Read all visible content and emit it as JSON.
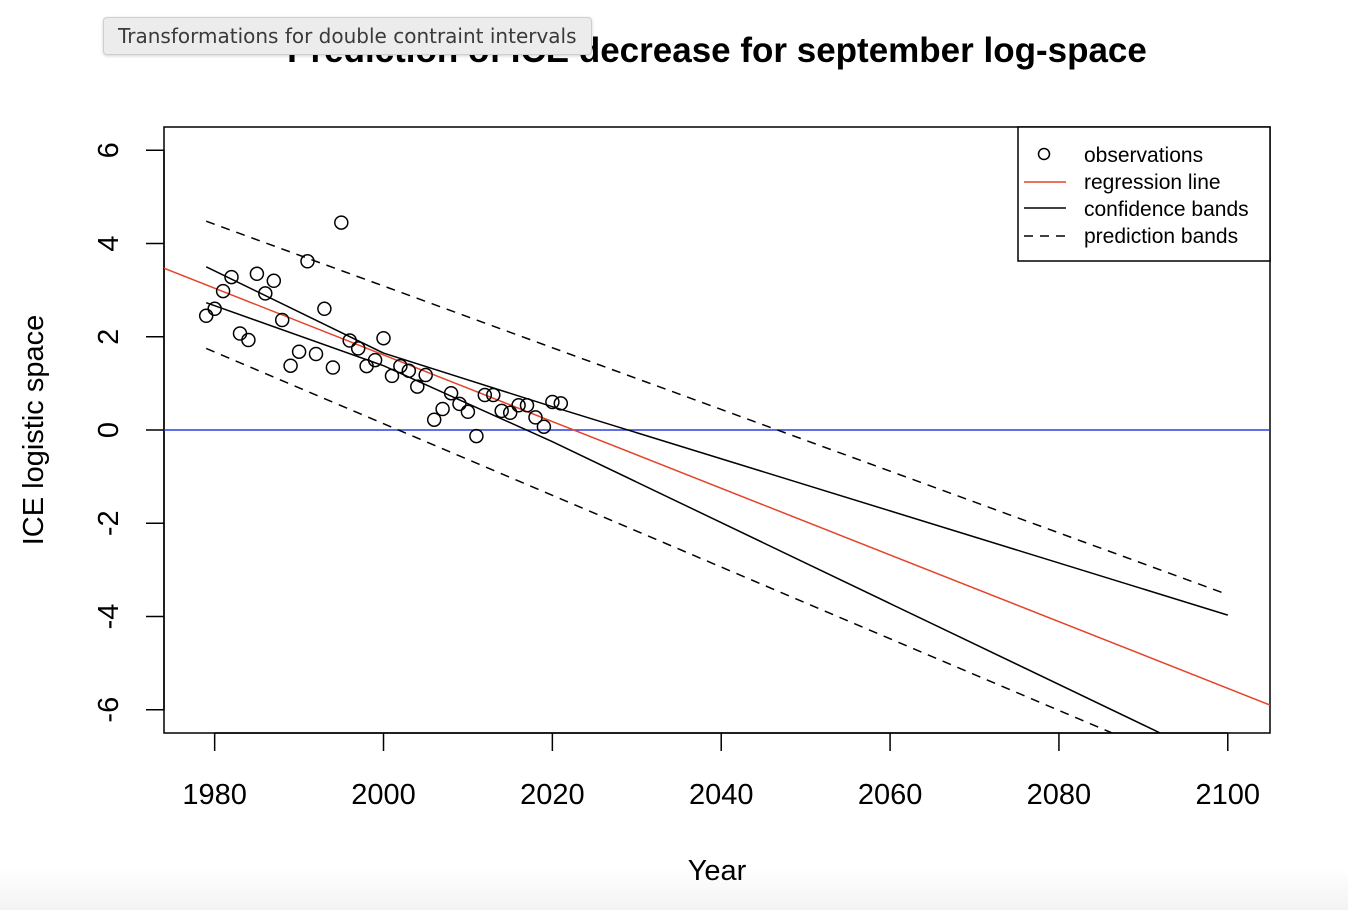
{
  "tooltip": {
    "text": "Transformations for double contraint intervals"
  },
  "colors": {
    "regression": "#e5432a",
    "zero_line": "#2b3fe0",
    "ink": "#000000"
  },
  "chart_data": {
    "type": "scatter",
    "title": "Prediction of ICE decrease for september log-space",
    "xlabel": "Year",
    "ylabel": "ICE logistic space",
    "xlim": [
      1974,
      2105
    ],
    "ylim": [
      -6.5,
      6.5
    ],
    "x_ticks": [
      1980,
      2000,
      2020,
      2040,
      2060,
      2080,
      2100
    ],
    "y_ticks": [
      -6,
      -4,
      -2,
      0,
      2,
      4,
      6
    ],
    "legend_position": "top-right",
    "legend": [
      {
        "label": "observations",
        "style": "circle"
      },
      {
        "label": "regression line",
        "style": "red-solid"
      },
      {
        "label": "confidence bands",
        "style": "black-solid"
      },
      {
        "label": "prediction bands",
        "style": "black-dashed"
      }
    ],
    "observations": {
      "x": [
        1979,
        1980,
        1981,
        1982,
        1983,
        1984,
        1985,
        1986,
        1987,
        1988,
        1989,
        1990,
        1991,
        1992,
        1993,
        1994,
        1995,
        1996,
        1997,
        1998,
        1999,
        2000,
        2001,
        2002,
        2003,
        2004,
        2005,
        2006,
        2007,
        2008,
        2009,
        2010,
        2011,
        2012,
        2013,
        2014,
        2015,
        2016,
        2017,
        2018,
        2019,
        2020,
        2021,
        2022
      ],
      "y": [
        2.45,
        2.6,
        2.98,
        3.28,
        2.07,
        1.93,
        3.35,
        2.93,
        3.2,
        2.36,
        1.38,
        1.68,
        3.62,
        1.63,
        2.6,
        1.34,
        4.45,
        1.92,
        1.75,
        1.37,
        1.5,
        1.97,
        1.16,
        1.37,
        1.27,
        0.93,
        1.18,
        0.22,
        0.45,
        0.79,
        0.56,
        0.39,
        -0.13,
        0.75,
        0.75,
        0.41,
        0.37,
        0.53,
        0.53,
        0.27,
        0.07,
        0.6,
        0.57,
        null
      ]
    },
    "regression_line": {
      "x": [
        1974,
        2105
      ],
      "y": [
        3.47,
        -5.9
      ]
    },
    "confidence_bands": {
      "upper": {
        "x": [
          1979,
          2000,
          2020,
          2100
        ],
        "y": [
          3.5,
          1.65,
          0.5,
          -3.97
        ]
      },
      "lower": {
        "x": [
          1979,
          2000,
          2020,
          2092
        ],
        "y": [
          2.73,
          1.38,
          -0.25,
          -6.5
        ]
      }
    },
    "prediction_bands": {
      "upper": {
        "x": [
          1979,
          2100
        ],
        "y": [
          4.48,
          -3.53
        ]
      },
      "lower": {
        "x": [
          1979,
          2086.3
        ],
        "y": [
          1.75,
          -6.5
        ]
      }
    },
    "reference_line": {
      "y": 0
    }
  }
}
